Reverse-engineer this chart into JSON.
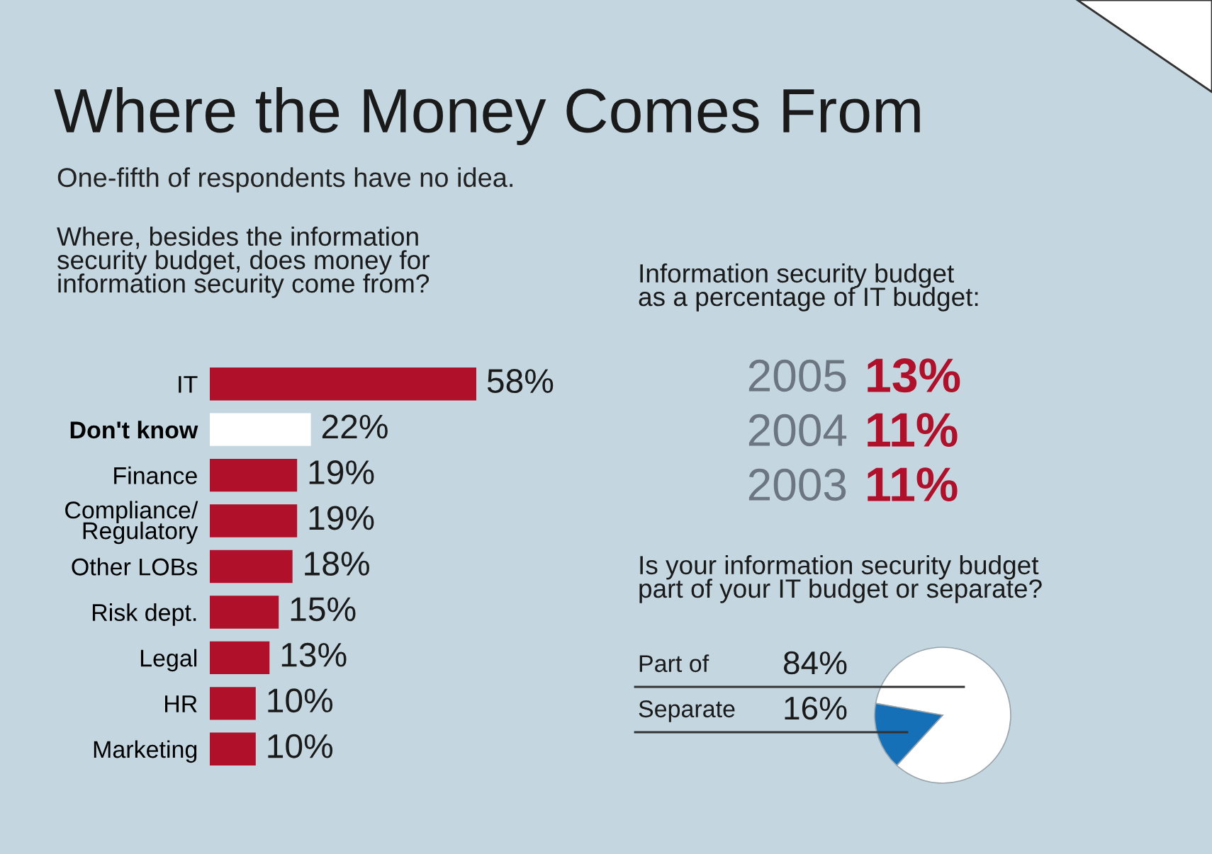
{
  "chart_data": [
    {
      "type": "other",
      "title": "Where the Money Comes From",
      "subtitle": "One-fifth of respondents have no idea."
    },
    {
      "type": "bar",
      "orientation": "horizontal",
      "title": "Where, besides the information security budget, does money for information security come from?",
      "categories": [
        "IT",
        "Don't know",
        "Finance",
        "Compliance/ Regulatory",
        "Other LOBs",
        "Risk dept.",
        "Legal",
        "HR",
        "Marketing"
      ],
      "values": [
        58,
        22,
        19,
        19,
        18,
        15,
        13,
        10,
        10
      ],
      "colors": [
        "#b0102a",
        "#ffffff",
        "#b0102a",
        "#b0102a",
        "#b0102a",
        "#b0102a",
        "#b0102a",
        "#b0102a",
        "#b0102a"
      ],
      "value_labels": [
        "58%",
        "22%",
        "19%",
        "19%",
        "18%",
        "15%",
        "13%",
        "10%",
        "10%"
      ]
    },
    {
      "type": "other",
      "title": "Information security budget as a percentage of IT budget:",
      "categories": [
        "2005",
        "2004",
        "2003"
      ],
      "value_labels": [
        "13%",
        "11%",
        "11%"
      ],
      "color": "#b0102a"
    },
    {
      "type": "pie",
      "title": "Is your information security budget part of your IT budget or separate?",
      "categories": [
        "Part of",
        "Separate"
      ],
      "values": [
        84,
        16
      ],
      "colors": [
        "#ffffff",
        "#1570b8"
      ],
      "value_labels": [
        "84%",
        "16%"
      ]
    }
  ]
}
